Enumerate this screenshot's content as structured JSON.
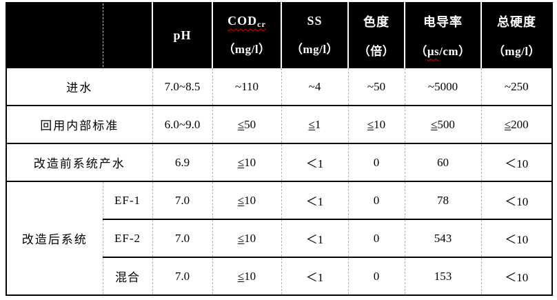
{
  "table": {
    "colors": {
      "header_bg": "#000000",
      "header_text": "#ffffff",
      "body_text": "#000000",
      "grid_dashed": "#b3b3b3",
      "grid_solid": "#000000",
      "spellcheck_squiggle": "#dd1100"
    },
    "header": {
      "columns": [
        {
          "name": "pH",
          "unit": ""
        },
        {
          "name": "COD",
          "sub": "cr",
          "unit": "（mg/l）"
        },
        {
          "name": "SS",
          "unit": "（mg/l）"
        },
        {
          "name": "色度",
          "unit": "（倍）"
        },
        {
          "name": "电导率",
          "unit_pre": "（",
          "unit_wavy": "μs",
          "unit_post": "/cm）"
        },
        {
          "name": "总硬度",
          "unit": "（mg/l）"
        }
      ]
    },
    "rows": [
      {
        "label": "进水",
        "values": [
          "7.0~8.5",
          "~110",
          "~4",
          "~50",
          "~5000",
          "~250"
        ]
      },
      {
        "label": "回用内部标准",
        "values": [
          "6.0~9.0",
          "≤50",
          "≤1",
          "≤10",
          "≤500",
          "≤200"
        ]
      },
      {
        "label": "改造前系统产水",
        "values": [
          "6.9",
          "≤10",
          "＜1",
          "0",
          "60",
          "＜10"
        ]
      },
      {
        "group_label": "改造后系统",
        "sub_label": "EF-1",
        "values": [
          "7.0",
          "≤10",
          "＜1",
          "0",
          "78",
          "＜10"
        ]
      },
      {
        "sub_label": "EF-2",
        "values": [
          "7.0",
          "≤10",
          "＜1",
          "0",
          "543",
          "＜10"
        ]
      },
      {
        "sub_label": "混合",
        "values": [
          "7.0",
          "≤10",
          "＜1",
          "0",
          "153",
          "＜10"
        ]
      }
    ]
  }
}
